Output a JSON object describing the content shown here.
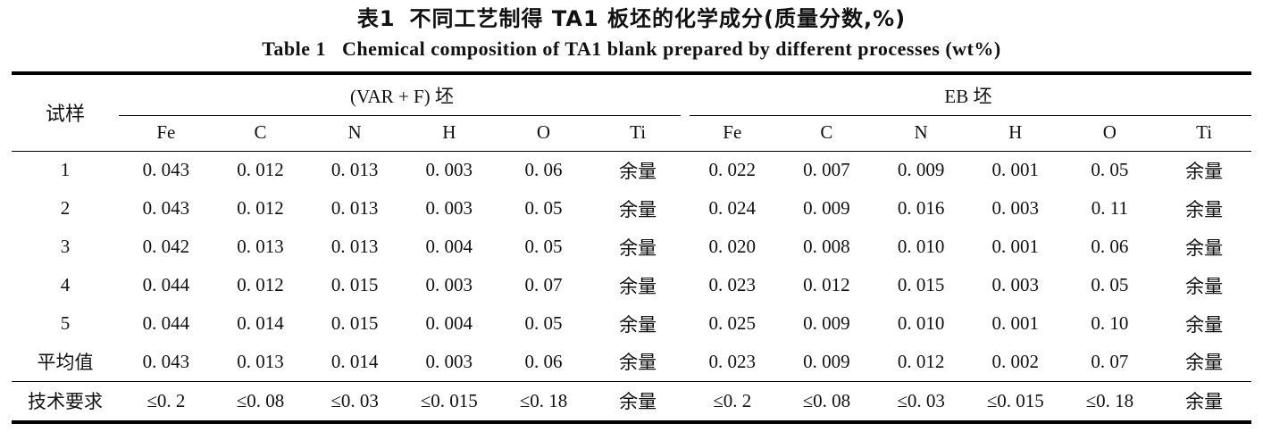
{
  "page": {
    "background": "#ffffff",
    "text_color": "#111111",
    "rule_color": "#000000"
  },
  "title": {
    "zh_label": "表1",
    "zh_text": "不同工艺制得 TA1 板坯的化学成分(质量分数,%)",
    "en_label": "Table 1",
    "en_text": "Chemical composition of TA1 blank prepared by different processes (wt%)"
  },
  "table": {
    "sample_header": "试样",
    "groups": [
      {
        "label": "(VAR + F) 坯"
      },
      {
        "label": "EB 坯"
      }
    ],
    "element_headers": [
      "Fe",
      "C",
      "N",
      "H",
      "O",
      "Ti"
    ],
    "rows": [
      {
        "label": "1",
        "varf": [
          "0. 043",
          "0. 012",
          "0. 013",
          "0. 003",
          "0. 06",
          "余量"
        ],
        "eb": [
          "0. 022",
          "0. 007",
          "0. 009",
          "0. 001",
          "0. 05",
          "余量"
        ]
      },
      {
        "label": "2",
        "varf": [
          "0. 043",
          "0. 012",
          "0. 013",
          "0. 003",
          "0. 05",
          "余量"
        ],
        "eb": [
          "0. 024",
          "0. 009",
          "0. 016",
          "0. 003",
          "0. 11",
          "余量"
        ]
      },
      {
        "label": "3",
        "varf": [
          "0. 042",
          "0. 013",
          "0. 013",
          "0. 004",
          "0. 05",
          "余量"
        ],
        "eb": [
          "0. 020",
          "0. 008",
          "0. 010",
          "0. 001",
          "0. 06",
          "余量"
        ]
      },
      {
        "label": "4",
        "varf": [
          "0. 044",
          "0. 012",
          "0. 015",
          "0. 003",
          "0. 07",
          "余量"
        ],
        "eb": [
          "0. 023",
          "0. 012",
          "0. 015",
          "0. 003",
          "0. 05",
          "余量"
        ]
      },
      {
        "label": "5",
        "varf": [
          "0. 044",
          "0. 014",
          "0. 015",
          "0. 004",
          "0. 05",
          "余量"
        ],
        "eb": [
          "0. 025",
          "0. 009",
          "0. 010",
          "0. 001",
          "0. 10",
          "余量"
        ]
      },
      {
        "label": "平均值",
        "varf": [
          "0. 043",
          "0. 013",
          "0. 014",
          "0. 003",
          "0. 06",
          "余量"
        ],
        "eb": [
          "0. 023",
          "0. 009",
          "0. 012",
          "0. 002",
          "0. 07",
          "余量"
        ]
      }
    ],
    "requirement": {
      "label": "技术要求",
      "varf": [
        "≤0. 2",
        "≤0. 08",
        "≤0. 03",
        "≤0. 015",
        "≤0. 18",
        "余量"
      ],
      "eb": [
        "≤0. 2",
        "≤0. 08",
        "≤0. 03",
        "≤0. 015",
        "≤0. 18",
        "余量"
      ]
    }
  }
}
